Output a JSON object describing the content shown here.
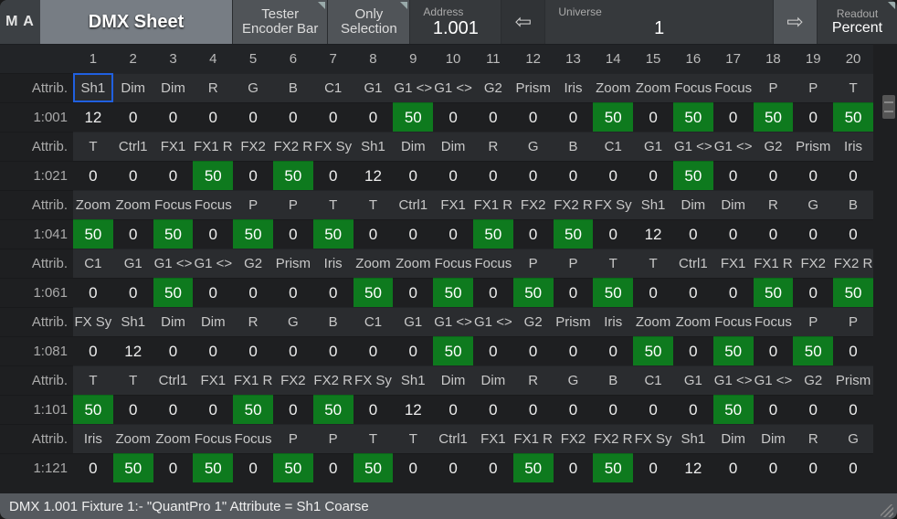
{
  "header": {
    "logo": "M A",
    "title": "DMX Sheet",
    "tester": "Tester\nEncoder Bar",
    "only_selection": "Only\nSelection",
    "address_label": "Address",
    "address_value": "1.001",
    "universe_label": "Universe",
    "universe_value": "1",
    "readout_label": "Readout",
    "readout_value": "Percent"
  },
  "columns": [
    "1",
    "2",
    "3",
    "4",
    "5",
    "6",
    "7",
    "8",
    "9",
    "10",
    "11",
    "12",
    "13",
    "14",
    "15",
    "16",
    "17",
    "18",
    "19",
    "20"
  ],
  "row_pairs": [
    {
      "label_attr": "Attrib.",
      "label_val": "1:001",
      "attrs": [
        "Sh1",
        "Dim",
        "Dim",
        "R",
        "G",
        "B",
        "C1",
        "G1",
        "G1 <>",
        "G1 <>",
        "G2",
        "Prism",
        "Iris",
        "Zoom",
        "Zoom",
        "Focus",
        "Focus",
        "P",
        "P",
        "T"
      ],
      "vals": [
        "12",
        "0",
        "0",
        "0",
        "0",
        "0",
        "0",
        "0",
        "50",
        "0",
        "0",
        "0",
        "0",
        "50",
        "0",
        "50",
        "0",
        "50",
        "0",
        "50"
      ],
      "sel_idx": 0
    },
    {
      "label_attr": "Attrib.",
      "label_val": "1:021",
      "attrs": [
        "T",
        "Ctrl1",
        "FX1",
        "FX1 R",
        "FX2",
        "FX2 R",
        "FX Sy",
        "Sh1",
        "Dim",
        "Dim",
        "R",
        "G",
        "B",
        "C1",
        "G1",
        "G1 <>",
        "G1 <>",
        "G2",
        "Prism",
        "Iris"
      ],
      "vals": [
        "0",
        "0",
        "0",
        "50",
        "0",
        "50",
        "0",
        "12",
        "0",
        "0",
        "0",
        "0",
        "0",
        "0",
        "0",
        "50",
        "0",
        "0",
        "0",
        "0"
      ]
    },
    {
      "label_attr": "Attrib.",
      "label_val": "1:041",
      "attrs": [
        "Zoom",
        "Zoom",
        "Focus",
        "Focus",
        "P",
        "P",
        "T",
        "T",
        "Ctrl1",
        "FX1",
        "FX1 R",
        "FX2",
        "FX2 R",
        "FX Sy",
        "Sh1",
        "Dim",
        "Dim",
        "R",
        "G",
        "B"
      ],
      "vals": [
        "50",
        "0",
        "50",
        "0",
        "50",
        "0",
        "50",
        "0",
        "0",
        "0",
        "50",
        "0",
        "50",
        "0",
        "12",
        "0",
        "0",
        "0",
        "0",
        "0"
      ]
    },
    {
      "label_attr": "Attrib.",
      "label_val": "1:061",
      "attrs": [
        "C1",
        "G1",
        "G1 <>",
        "G1 <>",
        "G2",
        "Prism",
        "Iris",
        "Zoom",
        "Zoom",
        "Focus",
        "Focus",
        "P",
        "P",
        "T",
        "T",
        "Ctrl1",
        "FX1",
        "FX1 R",
        "FX2",
        "FX2 R"
      ],
      "vals": [
        "0",
        "0",
        "50",
        "0",
        "0",
        "0",
        "0",
        "50",
        "0",
        "50",
        "0",
        "50",
        "0",
        "50",
        "0",
        "0",
        "0",
        "50",
        "0",
        "50"
      ]
    },
    {
      "label_attr": "Attrib.",
      "label_val": "1:081",
      "attrs": [
        "FX Sy",
        "Sh1",
        "Dim",
        "Dim",
        "R",
        "G",
        "B",
        "C1",
        "G1",
        "G1 <>",
        "G1 <>",
        "G2",
        "Prism",
        "Iris",
        "Zoom",
        "Zoom",
        "Focus",
        "Focus",
        "P",
        "P"
      ],
      "vals": [
        "0",
        "12",
        "0",
        "0",
        "0",
        "0",
        "0",
        "0",
        "0",
        "50",
        "0",
        "0",
        "0",
        "0",
        "50",
        "0",
        "50",
        "0",
        "50",
        "0"
      ]
    },
    {
      "label_attr": "Attrib.",
      "label_val": "1:101",
      "attrs": [
        "T",
        "T",
        "Ctrl1",
        "FX1",
        "FX1 R",
        "FX2",
        "FX2 R",
        "FX Sy",
        "Sh1",
        "Dim",
        "Dim",
        "R",
        "G",
        "B",
        "C1",
        "G1",
        "G1 <>",
        "G1 <>",
        "G2",
        "Prism"
      ],
      "vals": [
        "50",
        "0",
        "0",
        "0",
        "50",
        "0",
        "50",
        "0",
        "12",
        "0",
        "0",
        "0",
        "0",
        "0",
        "0",
        "0",
        "50",
        "0",
        "0",
        "0"
      ]
    },
    {
      "label_attr": "Attrib.",
      "label_val": "1:121",
      "attrs": [
        "Iris",
        "Zoom",
        "Zoom",
        "Focus",
        "Focus",
        "P",
        "P",
        "T",
        "T",
        "Ctrl1",
        "FX1",
        "FX1 R",
        "FX2",
        "FX2 R",
        "FX Sy",
        "Sh1",
        "Dim",
        "Dim",
        "R",
        "G"
      ],
      "vals": [
        "0",
        "50",
        "0",
        "50",
        "0",
        "50",
        "0",
        "50",
        "0",
        "0",
        "0",
        "50",
        "0",
        "50",
        "0",
        "12",
        "0",
        "0",
        "0",
        "0"
      ]
    }
  ],
  "status": "DMX 1.001  Fixture 1:- \"QuantPro 1\" Attribute = Sh1 Coarse",
  "colors": {
    "hl_bg": "#0e7a1e",
    "sel_outline": "#2060e0",
    "header_title_bg": "#777d84"
  }
}
